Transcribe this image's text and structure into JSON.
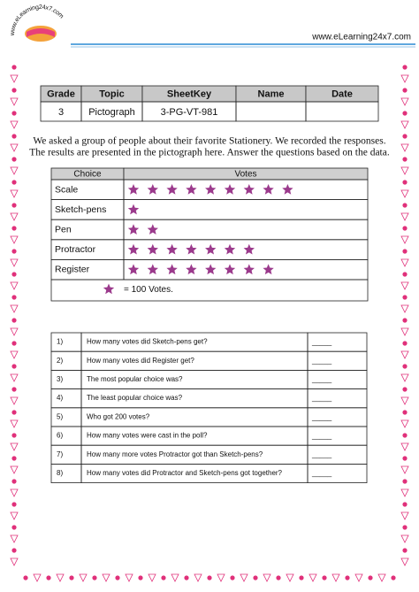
{
  "header": {
    "logo_text": "www.eLearning24x7.com",
    "website": "www.eLearning24x7.com"
  },
  "info_table": {
    "columns": [
      "Grade",
      "Topic",
      "SheetKey",
      "Name",
      "Date"
    ],
    "rows": [
      [
        "3",
        "Pictograph",
        "3-PG-VT-981"
      ]
    ]
  },
  "intro": [
    "We asked a group of people about their favorite Stationery. We recorded the responses.",
    "The results are presented in the pictograph here. Answer the questions based on the data."
  ],
  "pictograph": {
    "columns": [
      "Choice",
      "Votes"
    ],
    "star_color": "#9b3a8c",
    "rows": [
      {
        "choice": "Scale",
        "stars": 9
      },
      {
        "choice": "Sketch-pens",
        "stars": 1
      },
      {
        "choice": "Pen",
        "stars": 2
      },
      {
        "choice": "Protractor",
        "stars": 7
      },
      {
        "choice": "Register",
        "stars": 8
      }
    ],
    "key_label": "= 100 Votes."
  },
  "questions": [
    {
      "number": "1)",
      "text": "How many votes did Sketch-pens get?",
      "blank": "_____"
    },
    {
      "number": "2)",
      "text": "How many votes did Register get?",
      "blank": "_____"
    },
    {
      "number": "3)",
      "text": "The most popular choice was?",
      "blank": "_____"
    },
    {
      "number": "4)",
      "text": "The least popular choice was?",
      "blank": "_____"
    },
    {
      "number": "5)",
      "text": "Who got 200 votes?",
      "blank": "_____"
    },
    {
      "number": "6)",
      "text": "How many votes were cast in the poll?",
      "blank": "_____"
    },
    {
      "number": "7)",
      "text": "How many more votes Protractor got than Sketch-pens?",
      "blank": "_____"
    },
    {
      "number": "8)",
      "text": "How many votes did Protractor and Sketch-pens got together?",
      "blank": "_____"
    }
  ]
}
